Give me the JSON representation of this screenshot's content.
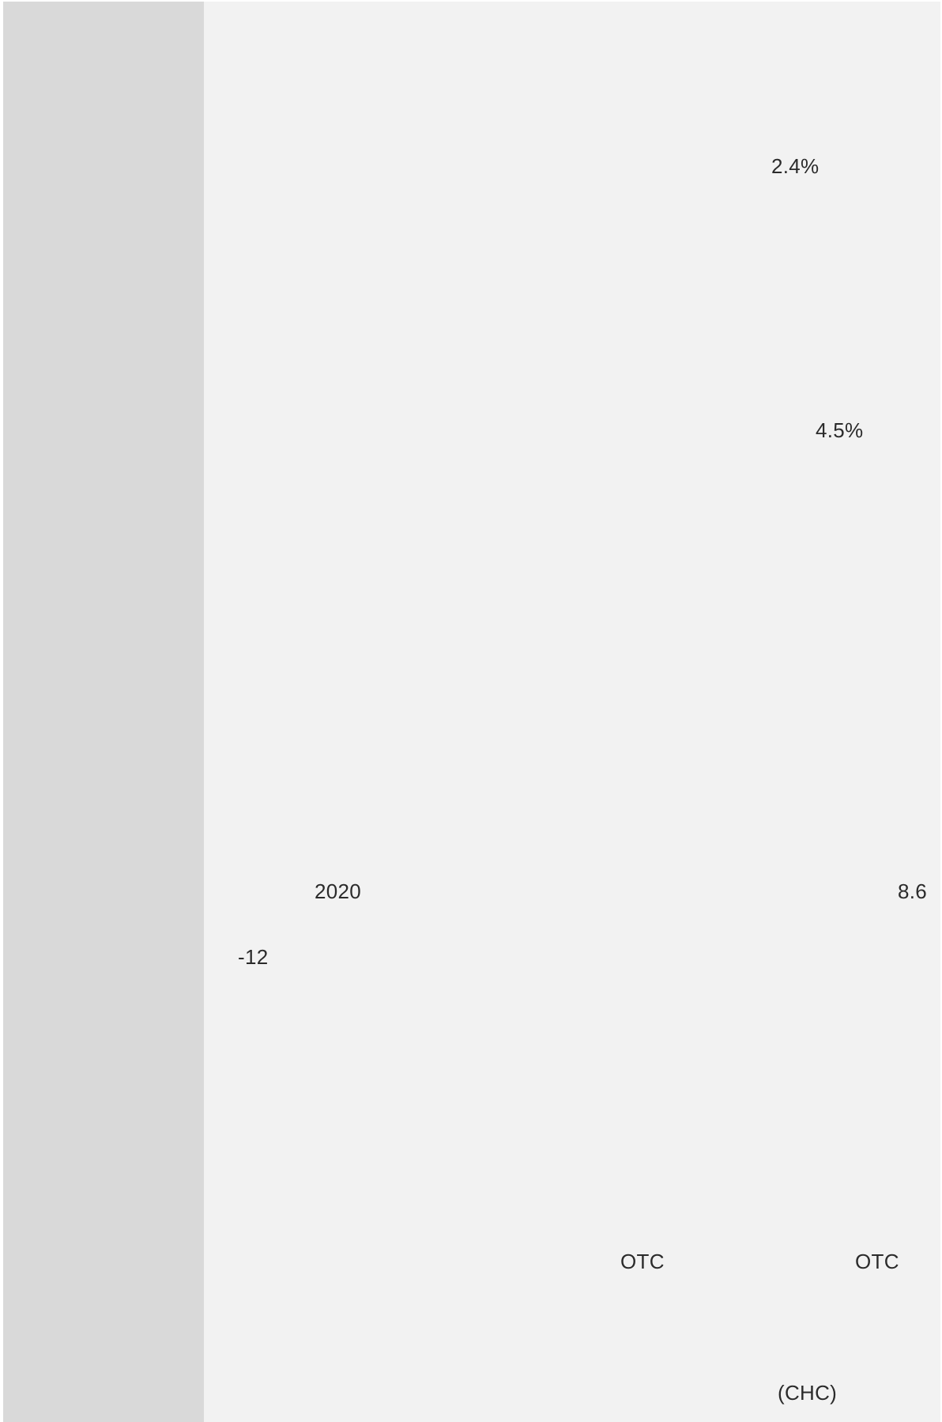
{
  "fragments": {
    "pct_top": "2.4%",
    "pct_mid": "4.5%",
    "year": "2020",
    "value_right": "8.6",
    "value_negative": "-12",
    "otc_left": "OTC",
    "otc_right": "OTC",
    "chc": "(CHC)"
  },
  "colors": {
    "sidebar": "#d9d9d9",
    "content": "#f2f2f2",
    "text": "#2b2b2b"
  }
}
